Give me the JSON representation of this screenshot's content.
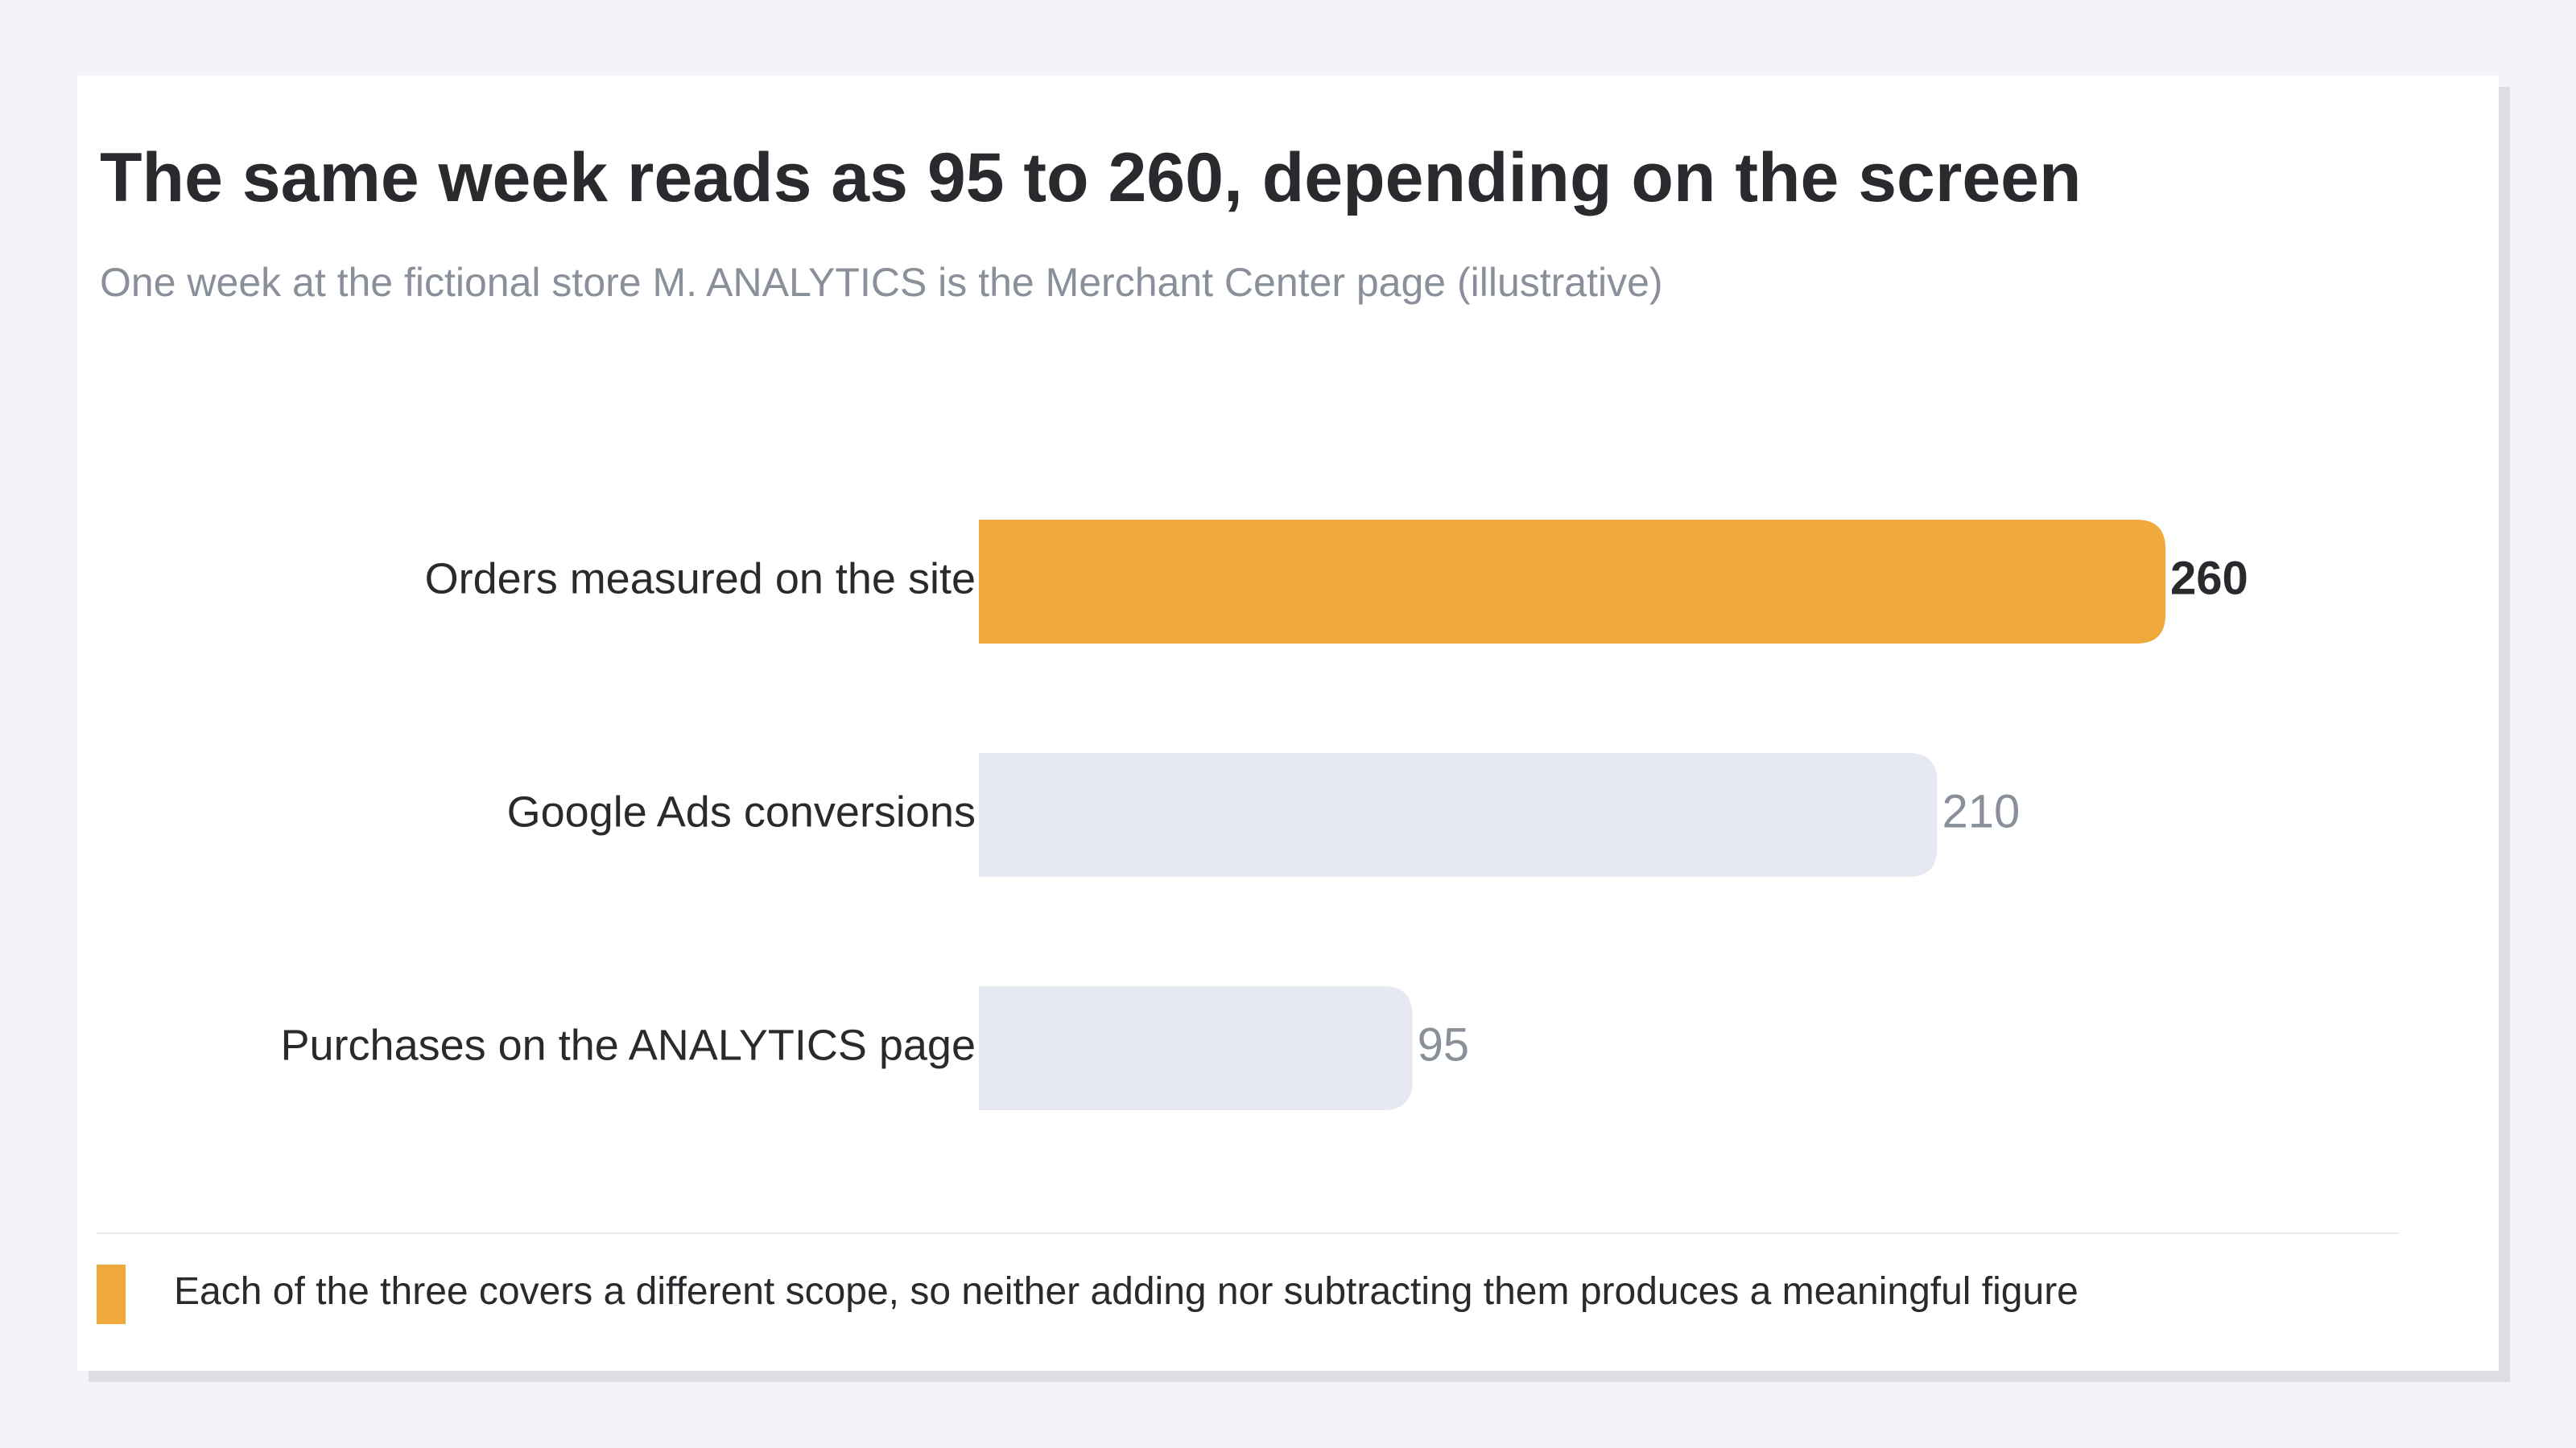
{
  "title": "The same week reads as 95 to 260, depending on the screen",
  "subtitle": "One week at the fictional store M. ANALYTICS is the Merchant Center page (illustrative)",
  "note": "Each of the three covers a different scope, so neither adding nor subtracting them produces a meaningful figure",
  "colors": {
    "highlight": "#f0a93c",
    "muted_bar": "#e6e9f1",
    "label_text": "#2a2a2e",
    "muted_value": "#8a9099"
  },
  "chart_data": {
    "type": "bar",
    "orientation": "horizontal",
    "categories": [
      "Orders measured on the site",
      "Google Ads conversions",
      "Purchases on the ANALYTICS page"
    ],
    "values": [
      260,
      210,
      95
    ],
    "value_labels": [
      "260",
      "210",
      "95"
    ],
    "highlight": [
      true,
      false,
      false
    ],
    "title": "The same week reads as 95 to 260, depending on the screen",
    "xlabel": "",
    "ylabel": "",
    "xlim": [
      0,
      260
    ],
    "grid": false,
    "legend": "bottom-left"
  }
}
